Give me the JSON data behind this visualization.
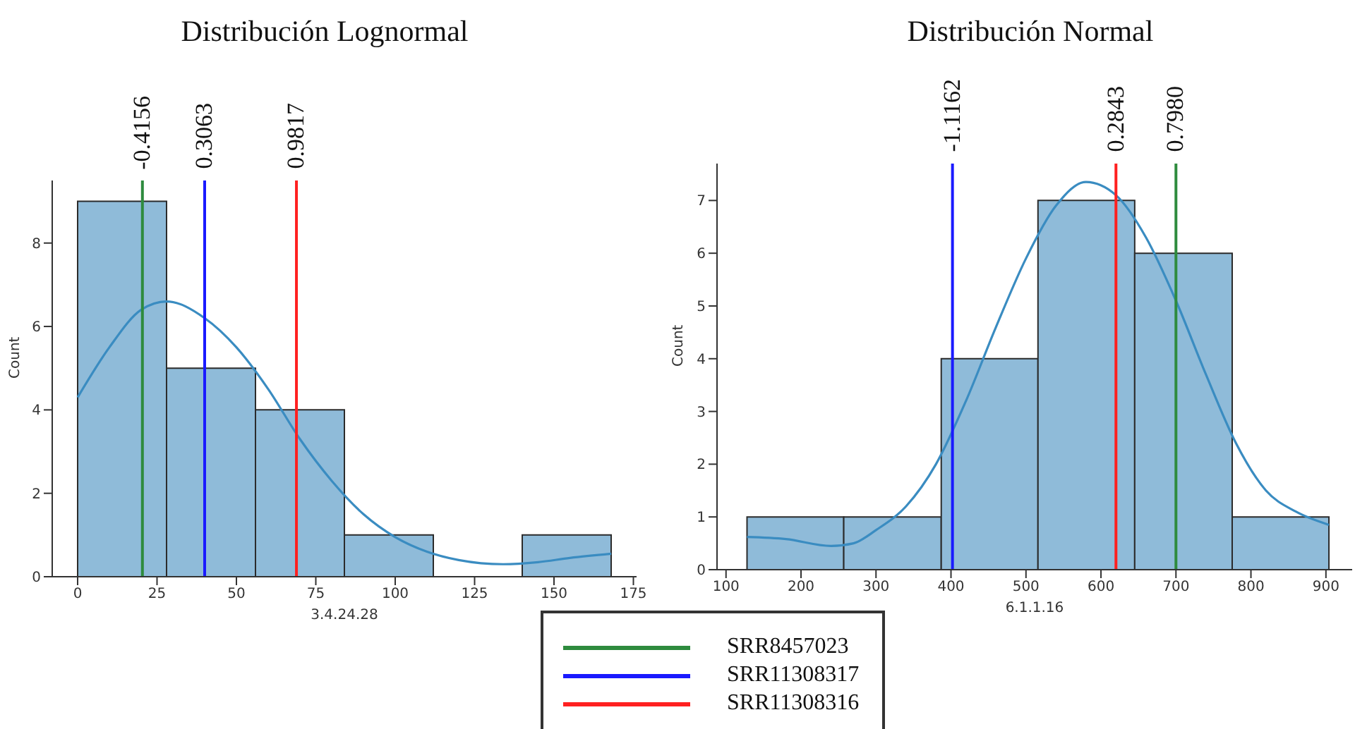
{
  "chart_data": [
    {
      "type": "histogram",
      "title": "Distribución Lognormal",
      "xlabel": "3.4.24.28",
      "ylabel": "Count",
      "xlim": [
        -8,
        176
      ],
      "ylim": [
        0,
        9.5
      ],
      "xticks": [
        0,
        25,
        50,
        75,
        100,
        125,
        150,
        175
      ],
      "yticks": [
        0,
        2,
        4,
        6,
        8
      ],
      "legend": "bottom",
      "series": [
        {
          "color": "#8fbbd9",
          "bins": [
            0,
            28,
            56,
            84,
            112,
            140,
            168
          ],
          "values": [
            9,
            5,
            4,
            1,
            0,
            1
          ]
        },
        {
          "type": "line",
          "color": "#3a8cc1",
          "x": [
            0,
            10,
            20,
            28,
            40,
            50,
            60,
            70,
            80,
            90,
            100,
            110,
            120,
            134,
            145,
            155,
            168
          ],
          "values": [
            4.3,
            5.5,
            6.4,
            6.6,
            6.2,
            5.5,
            4.5,
            3.3,
            2.3,
            1.5,
            0.95,
            0.6,
            0.4,
            0.3,
            0.35,
            0.45,
            0.55
          ]
        },
        {
          "type": "line",
          "name": "SRR8457023",
          "color": "#2e8b3e",
          "x": [
            20.4,
            20.4
          ],
          "values": [
            0,
            9.5
          ]
        },
        {
          "type": "line",
          "name": "SRR11308317",
          "color": "#1a1aff",
          "x": [
            40,
            40
          ],
          "values": [
            0,
            9.5
          ]
        },
        {
          "type": "line",
          "name": "SRR11308316",
          "color": "#ff2020",
          "x": [
            68.9,
            68.9
          ],
          "values": [
            0,
            9.5
          ]
        }
      ],
      "annotations": [
        {
          "text": "-0.4156",
          "x": 20.4,
          "y": 9.5
        },
        {
          "text": "0.3063",
          "x": 40,
          "y": 9.5
        },
        {
          "text": "0.9817",
          "x": 68.9,
          "y": 9.5
        }
      ]
    },
    {
      "type": "histogram",
      "title": "Distribución Normal",
      "xlabel": "6.1.1.16",
      "ylabel": "Count",
      "xlim": [
        88,
        935
      ],
      "ylim": [
        0,
        7.7
      ],
      "xticks": [
        100,
        200,
        300,
        400,
        500,
        600,
        700,
        800,
        900
      ],
      "yticks": [
        0,
        1,
        2,
        3,
        4,
        5,
        6,
        7
      ],
      "series": [
        {
          "color": "#8fbbd9",
          "bins": [
            128,
            257,
            387,
            516,
            645,
            775,
            904
          ],
          "values": [
            1,
            1,
            4,
            7,
            6,
            1
          ]
        },
        {
          "type": "line",
          "color": "#3a8cc1",
          "x": [
            128,
            180,
            240,
            270,
            300,
            340,
            380,
            420,
            460,
            500,
            540,
            580,
            620,
            660,
            700,
            740,
            780,
            820,
            860,
            904
          ],
          "values": [
            0.62,
            0.58,
            0.45,
            0.5,
            0.75,
            1.2,
            2,
            3.2,
            4.6,
            5.9,
            6.9,
            7.35,
            7.1,
            6.3,
            5.1,
            3.7,
            2.4,
            1.5,
            1.1,
            0.85
          ]
        },
        {
          "type": "line",
          "color": "#1a1aff",
          "x": [
            402,
            402
          ],
          "values": [
            0,
            7.7
          ]
        },
        {
          "type": "line",
          "color": "#ff2020",
          "x": [
            620,
            620
          ],
          "values": [
            0,
            7.7
          ]
        },
        {
          "type": "line",
          "color": "#2e8b3e",
          "x": [
            700,
            700
          ],
          "values": [
            0,
            7.7
          ]
        }
      ],
      "annotations": [
        {
          "text": "-1.1162",
          "x": 402,
          "y": 7.7
        },
        {
          "text": "0.2843",
          "x": 620,
          "y": 7.7
        },
        {
          "text": "0.7980",
          "x": 700,
          "y": 7.7
        }
      ]
    }
  ]
}
